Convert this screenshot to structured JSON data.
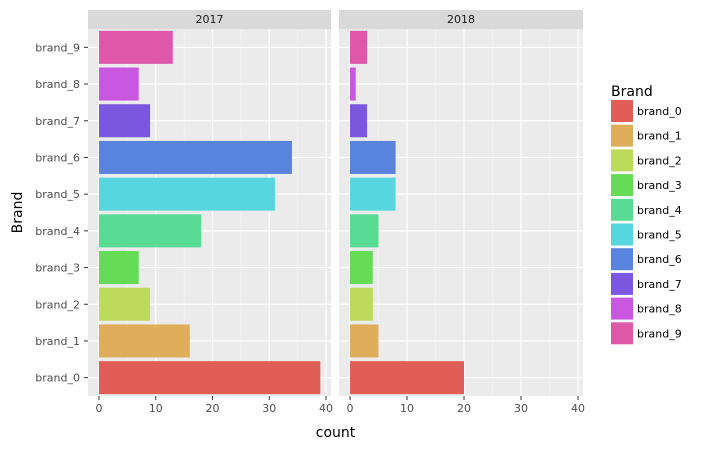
{
  "chart_data": {
    "type": "bar",
    "orientation": "horizontal",
    "facet_by": "year",
    "facets": [
      {
        "label": "2017",
        "values": [
          39,
          16,
          9,
          7,
          18,
          31,
          34,
          9,
          7,
          13
        ]
      },
      {
        "label": "2018",
        "values": [
          20,
          5,
          4,
          4,
          5,
          8,
          8,
          3,
          1,
          3
        ]
      }
    ],
    "categories": [
      "brand_0",
      "brand_1",
      "brand_2",
      "brand_3",
      "brand_4",
      "brand_5",
      "brand_6",
      "brand_7",
      "brand_8",
      "brand_9"
    ],
    "colors": [
      "#e05e55",
      "#dfae5a",
      "#bcdb5a",
      "#66dc56",
      "#58dc94",
      "#58d6df",
      "#5884de",
      "#7b57df",
      "#c957df",
      "#df58a7"
    ],
    "xlabel": "count",
    "ylabel": "Brand",
    "xlim": [
      0,
      40
    ],
    "xticks": [
      0,
      10,
      20,
      30,
      40
    ],
    "legend": {
      "title": "Brand",
      "position": "right"
    },
    "grid": true
  }
}
